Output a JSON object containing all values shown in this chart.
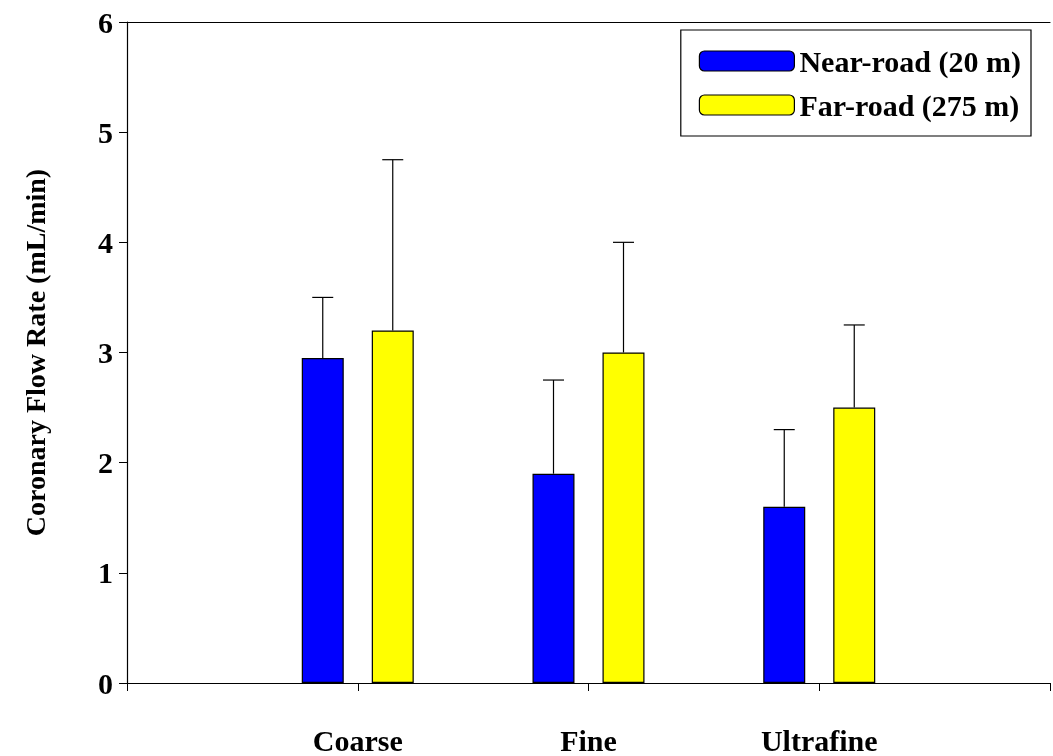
{
  "chart_data": {
    "type": "bar",
    "ylabel": "Coronary Flow Rate (mL/min)",
    "categories": [
      "Coarse",
      "Fine",
      "Ultrafine"
    ],
    "series": [
      {
        "name": "Near-road (20 m)",
        "color": "#0000ff",
        "values": [
          2.95,
          1.9,
          1.6
        ],
        "errors": [
          [
            2.95,
            3.5
          ],
          [
            1.9,
            2.75
          ],
          [
            1.6,
            2.3
          ]
        ]
      },
      {
        "name": "Far-road (275 m)",
        "color": "#ffff00",
        "values": [
          3.2,
          3.0,
          2.5
        ],
        "errors": [
          [
            3.2,
            4.75
          ],
          [
            3.0,
            4.0
          ],
          [
            2.5,
            3.25
          ]
        ]
      }
    ],
    "ylim": [
      0,
      6
    ],
    "yticks": [
      0,
      1,
      2,
      3,
      4,
      5,
      6
    ],
    "grid": false,
    "legend": "top right"
  }
}
